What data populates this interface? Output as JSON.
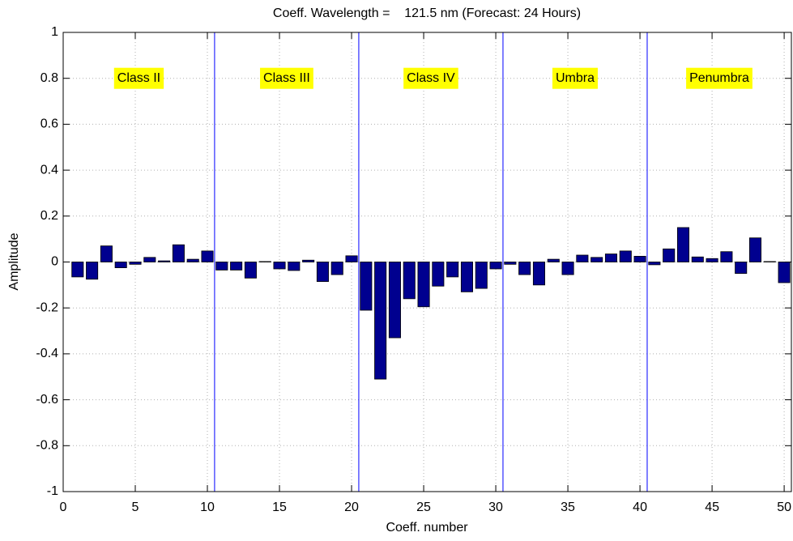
{
  "chart_data": {
    "type": "bar",
    "title": "Coeff. Wavelength =    121.5 nm (Forecast: 24 Hours)",
    "x_label": "Coeff. number",
    "y_label": "Amplitude",
    "x": [
      1,
      2,
      3,
      4,
      5,
      6,
      7,
      8,
      9,
      10,
      11,
      12,
      13,
      14,
      15,
      16,
      17,
      18,
      19,
      20,
      21,
      22,
      23,
      24,
      25,
      26,
      27,
      28,
      29,
      30,
      31,
      32,
      33,
      34,
      35,
      36,
      37,
      38,
      39,
      40,
      41,
      42,
      43,
      44,
      45,
      46,
      47,
      48,
      49,
      50
    ],
    "values": [
      -0.065,
      -0.075,
      0.07,
      -0.025,
      -0.01,
      0.02,
      0.005,
      0.075,
      0.012,
      0.048,
      -0.035,
      -0.035,
      -0.07,
      0.002,
      -0.03,
      -0.037,
      0.008,
      -0.085,
      -0.055,
      0.027,
      -0.21,
      -0.51,
      -0.33,
      -0.16,
      -0.195,
      -0.105,
      -0.065,
      -0.13,
      -0.115,
      -0.03,
      -0.01,
      -0.055,
      -0.1,
      0.012,
      -0.055,
      0.03,
      0.02,
      0.035,
      0.048,
      0.025,
      -0.012,
      0.057,
      0.15,
      0.022,
      0.015,
      0.045,
      -0.05,
      0.105,
      0.002,
      -0.09
    ],
    "color": "#00008f",
    "xlim": [
      0,
      50.5
    ],
    "xticks": [
      0,
      5,
      10,
      15,
      20,
      25,
      30,
      35,
      40,
      45,
      50
    ],
    "ylim": [
      -1,
      1
    ],
    "yticks": [
      -1,
      -0.8,
      -0.6,
      -0.4,
      -0.2,
      0,
      0.2,
      0.4,
      0.6,
      0.8,
      1
    ],
    "grid": true,
    "dividers": [
      10.5,
      20.5,
      30.5,
      40.5
    ],
    "divider_color": "#0000ff",
    "region_labels": [
      "Class II",
      "Class III",
      "Class IV",
      "Umbra",
      "Penumbra"
    ],
    "region_label_y": 0.8,
    "region_label_color": "#ffff00"
  }
}
